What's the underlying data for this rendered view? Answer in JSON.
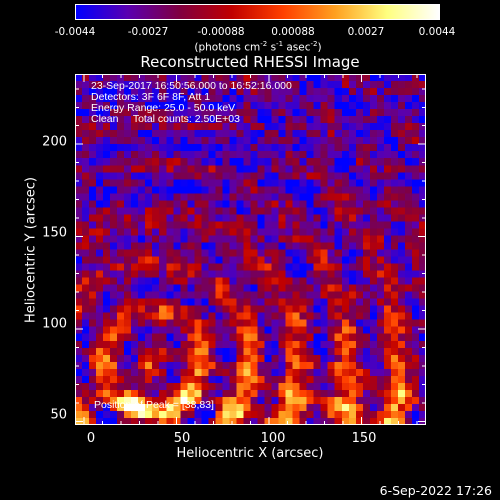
{
  "colorbar": {
    "ticks": [
      "-0.0044",
      "-0.0027",
      "-0.00088",
      "0.00088",
      "0.0027",
      "0.0044"
    ],
    "unit_base": "(photons cm",
    "unit_sup1": "-2",
    "unit_mid1": " s",
    "unit_sup2": "-1",
    "unit_mid2": " asec",
    "unit_sup3": "-2",
    "unit_end": ")",
    "colors": [
      "#0000ff",
      "#5a00b0",
      "#800040",
      "#c00000",
      "#ff4000",
      "#ffa020",
      "#ffff80",
      "#ffffff"
    ]
  },
  "chart_data": {
    "type": "heatmap",
    "title": "Reconstructed RHESSI Image",
    "xlabel": "Heliocentric X (arcsec)",
    "ylabel": "Heliocentric Y (arcsec)",
    "xlim": [
      -5,
      185
    ],
    "ylim": [
      48,
      238
    ],
    "xticks": [
      "0",
      "50",
      "100",
      "150"
    ],
    "yticks": [
      "50",
      "100",
      "150",
      "200"
    ],
    "value_range": [
      -0.0044,
      0.0044
    ],
    "annotations": {
      "line1": "23-Sep-2017 16:50:56.000 to 16:52:16.000",
      "line2": "Detectors: 3F 6F 8F, Att 1",
      "line3": "Energy Range: 25.0 - 50.0 keV",
      "line4": "Clean     Total counts: 2.50E+03",
      "peak": "Position of Peak = [38,83]"
    },
    "peak_position": [
      38,
      83
    ]
  },
  "footer": {
    "date": "6-Sep-2022 17:26"
  }
}
